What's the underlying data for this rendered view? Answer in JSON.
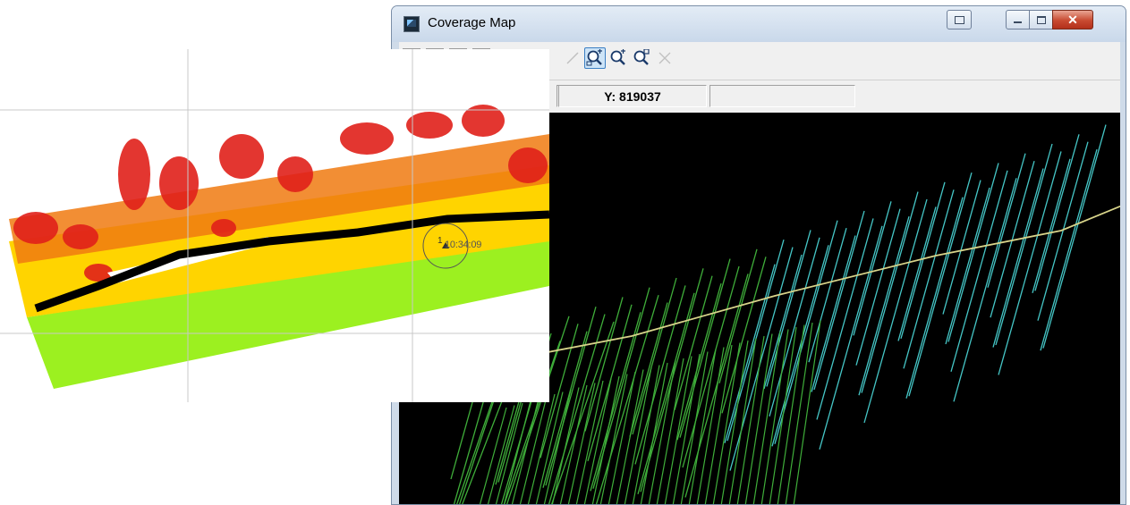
{
  "window": {
    "title": "Coverage Map",
    "icon": "coverage-map-app-icon",
    "close_glyph": "✕"
  },
  "toolbar": {
    "buttons": [
      {
        "icon": "pan-icon",
        "state": "disabled"
      },
      {
        "icon": "zoom-window-icon",
        "state": "active"
      },
      {
        "icon": "zoom-in-icon",
        "state": "normal"
      },
      {
        "icon": "zoom-out-icon",
        "state": "normal"
      },
      {
        "icon": "zoom-extents-icon",
        "state": "disabled"
      }
    ]
  },
  "status": {
    "x_value": "",
    "y_value": "Y: 819037",
    "extra_value": ""
  },
  "overlay": {
    "marker_index": "1",
    "marker_time": "10:34:09"
  },
  "colors": {
    "map_background": "#000000",
    "line_green": "#3fae3a",
    "line_cyan": "#45c6c6",
    "trajectory": "#d8d48a",
    "cloud_red": "#e0201a",
    "cloud_orange": "#f07a10",
    "cloud_yellow": "#ffd400",
    "cloud_green": "#9cf020"
  }
}
